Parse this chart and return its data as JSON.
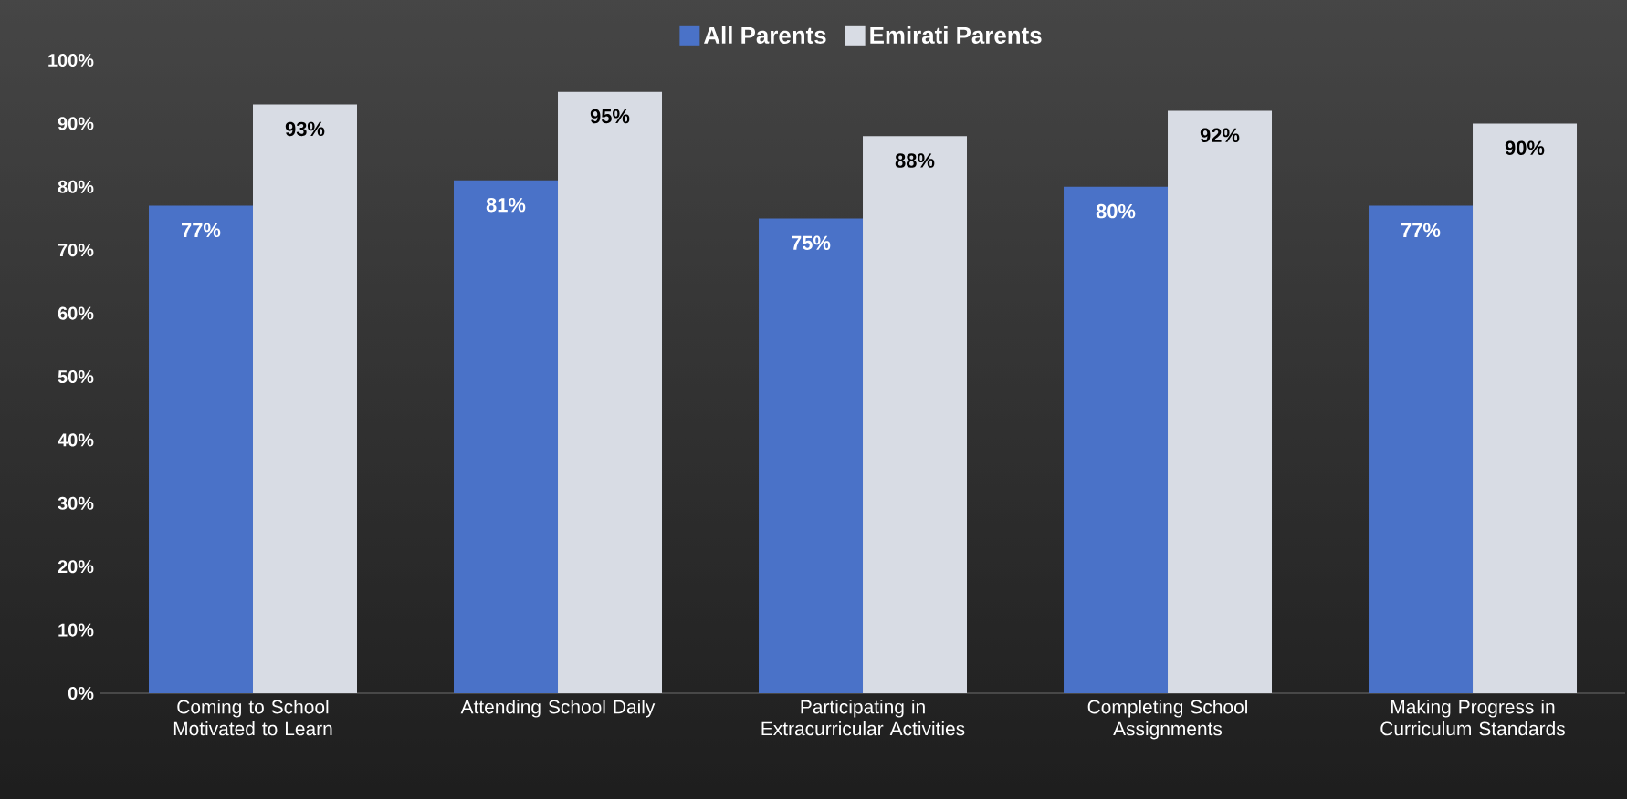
{
  "chart_data": {
    "type": "bar",
    "categories": [
      "Coming to School Motivated to Learn",
      "Attending School Daily",
      "Participating in Extracurricular Activities",
      "Completing School Assignments",
      "Making Progress in Curriculum Standards"
    ],
    "series": [
      {
        "name": "All Parents",
        "color": "#4a72c8",
        "values": [
          77,
          81,
          75,
          80,
          77
        ],
        "value_labels": [
          "77%",
          "81%",
          "75%",
          "80%",
          "77%"
        ]
      },
      {
        "name": "Emirati Parents",
        "color": "#d8dce4",
        "values": [
          93,
          95,
          88,
          92,
          90
        ],
        "value_labels": [
          "93%",
          "95%",
          "88%",
          "92%",
          "90%"
        ]
      }
    ],
    "ylim": [
      0,
      100
    ],
    "yticks": [
      {
        "value": 0,
        "label": "0%"
      },
      {
        "value": 10,
        "label": "10%"
      },
      {
        "value": 20,
        "label": "20%"
      },
      {
        "value": 30,
        "label": "30%"
      },
      {
        "value": 40,
        "label": "40%"
      },
      {
        "value": 50,
        "label": "50%"
      },
      {
        "value": 60,
        "label": "60%"
      },
      {
        "value": 70,
        "label": "70%"
      },
      {
        "value": 80,
        "label": "80%"
      },
      {
        "value": 90,
        "label": "90%"
      },
      {
        "value": 100,
        "label": "100%"
      }
    ],
    "legend": "top"
  }
}
